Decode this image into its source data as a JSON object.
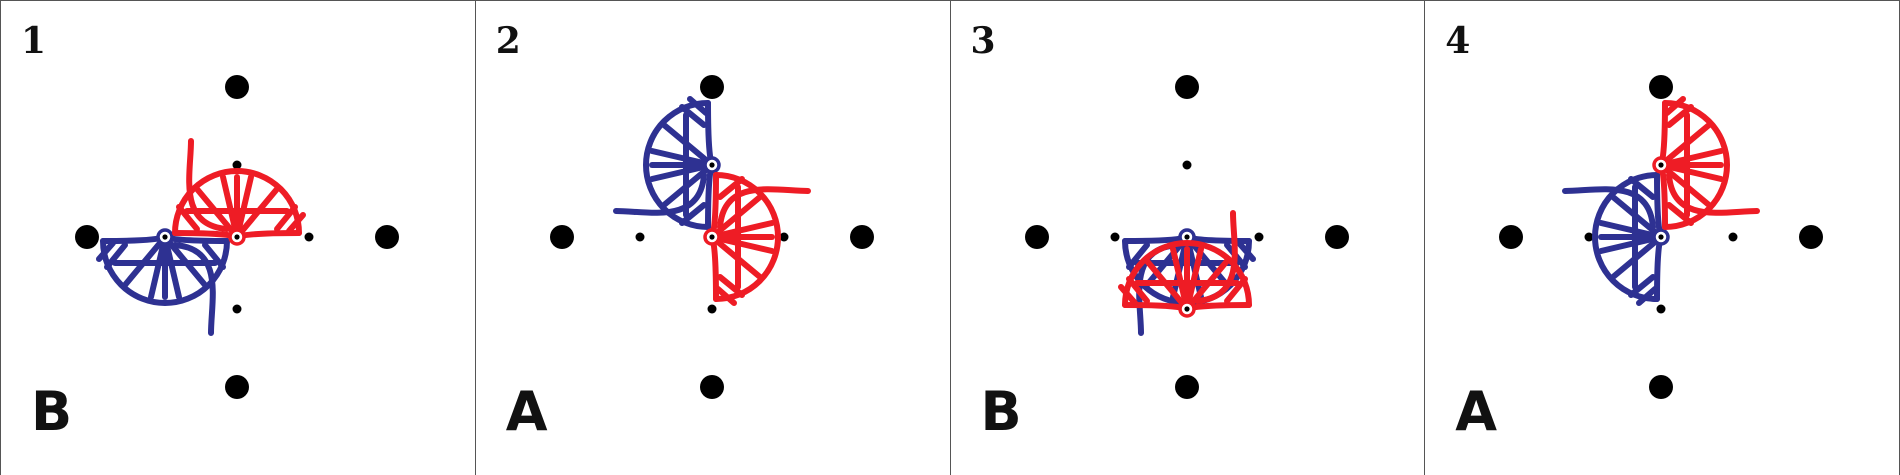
{
  "colors": {
    "red": "#ee1c25",
    "blue": "#2e3192",
    "dot": "#000000"
  },
  "panels": [
    {
      "number": "1",
      "letter": "B",
      "red_figure": {
        "pivot": "center",
        "heading_deg": 0,
        "mirrored": false
      },
      "blue_figure": {
        "pivot": "left",
        "heading_deg": 180,
        "mirrored": false
      }
    },
    {
      "number": "2",
      "letter": "A",
      "red_figure": {
        "pivot": "center",
        "heading_deg": 90,
        "mirrored": false
      },
      "blue_figure": {
        "pivot": "top",
        "heading_deg": 270,
        "mirrored": false
      }
    },
    {
      "number": "3",
      "letter": "B",
      "red_figure": {
        "pivot": "bottom",
        "heading_deg": 0,
        "mirrored": true
      },
      "blue_figure": {
        "pivot": "center",
        "heading_deg": 180,
        "mirrored": true
      }
    },
    {
      "number": "4",
      "letter": "A",
      "red_figure": {
        "pivot": "top",
        "heading_deg": 90,
        "mirrored": true
      },
      "blue_figure": {
        "pivot": "center",
        "heading_deg": 270,
        "mirrored": true
      }
    }
  ]
}
